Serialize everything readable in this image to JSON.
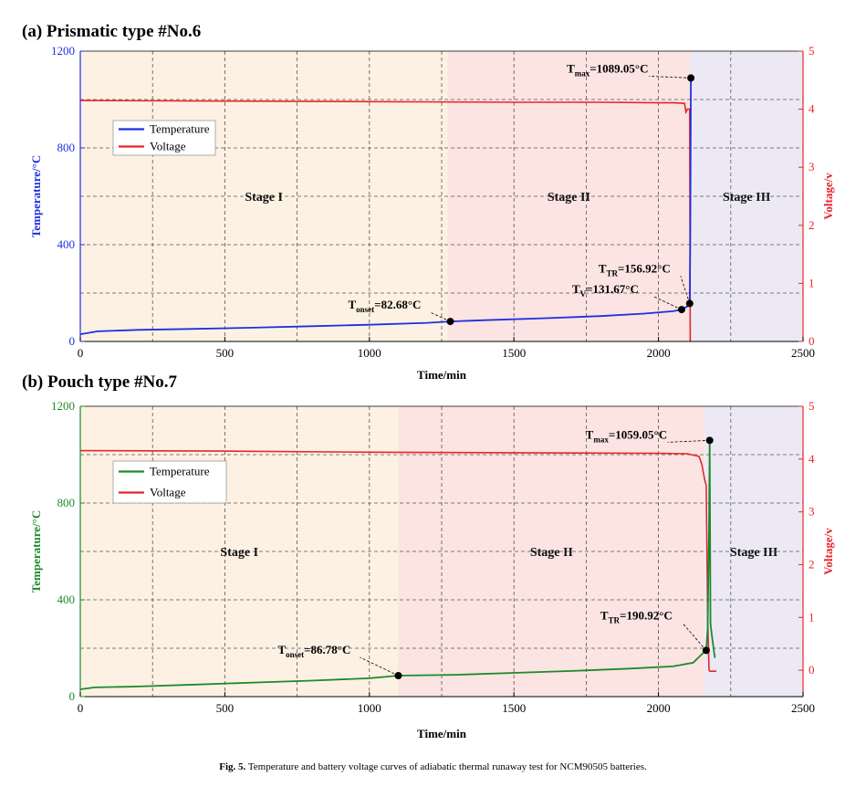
{
  "caption": {
    "label": "Fig. 5.",
    "text": "Temperature and battery voltage curves of adiabatic thermal runaway test for NCM90505 batteries."
  },
  "chart_data": [
    {
      "type": "line",
      "title": "(a) Prismatic type #No.6",
      "xlabel": "Time/min",
      "ylabel": "Temperature/°C",
      "y2label": "Voltage/v",
      "xlim": [
        0,
        2500
      ],
      "ylim": [
        0,
        1200
      ],
      "y2lim": [
        0,
        5
      ],
      "xticks": [
        "0",
        "500",
        "1000",
        "1500",
        "2000",
        "2500"
      ],
      "yticks": [
        "0",
        "400",
        "800",
        "1200"
      ],
      "y2ticks": [
        "0",
        "1",
        "2",
        "3",
        "4",
        "5"
      ],
      "grid": true,
      "legend_position": "upper-left",
      "temp_color": "#1f2fe0",
      "axis_color_left": "#1f2fe0",
      "axis_color_right": "#e8252a",
      "voltage_color": "#e8252a",
      "stages": [
        {
          "name": "Stage I",
          "x0": 0,
          "x1": 1270,
          "color": "#fdf1e3"
        },
        {
          "name": "Stage II",
          "x0": 1270,
          "x1": 2110,
          "color": "#fbe4e2"
        },
        {
          "name": "Stage III",
          "x0": 2110,
          "x1": 2500,
          "color": "#ece9f5"
        }
      ],
      "series": [
        {
          "name": "Temperature",
          "axis": "left",
          "x": [
            0,
            60,
            200,
            400,
            600,
            800,
            1000,
            1200,
            1280,
            1400,
            1600,
            1800,
            1950,
            2050,
            2080,
            2100,
            2108,
            2110,
            2112,
            2113
          ],
          "y": [
            30,
            42,
            48,
            52,
            57,
            63,
            69,
            77,
            82.68,
            88,
            96,
            105,
            115,
            125,
            131.67,
            145,
            156.92,
            400,
            1089.05,
            1080
          ]
        },
        {
          "name": "Voltage",
          "axis": "right",
          "x": [
            0,
            500,
            1000,
            1500,
            1800,
            2000,
            2050,
            2090,
            2095,
            2100,
            2108,
            2110
          ],
          "y": [
            4.15,
            4.14,
            4.13,
            4.12,
            4.12,
            4.11,
            4.11,
            4.1,
            3.95,
            4.0,
            4.0,
            0
          ]
        }
      ],
      "annotations": [
        {
          "main": "T",
          "sub": "onset",
          "rest": "=82.68°C",
          "x": 1280,
          "y": 82.68
        },
        {
          "main": "T",
          "sub": "V",
          "rest": "=131.67°C",
          "x": 2080,
          "y": 131.67
        },
        {
          "main": "T",
          "sub": "TR",
          "rest": "=156.92°C",
          "x": 2108,
          "y": 156.92
        },
        {
          "main": "T",
          "sub": "max",
          "rest": "=1089.05°C",
          "x": 2112,
          "y": 1089.05
        }
      ]
    },
    {
      "type": "line",
      "title": "(b) Pouch type #No.7",
      "xlabel": "Time/min",
      "ylabel": "Temperature/°C",
      "y2label": "Voltage/v",
      "xlim": [
        0,
        2500
      ],
      "ylim": [
        0,
        1200
      ],
      "y2lim": [
        -0.5,
        5
      ],
      "xticks": [
        "0",
        "500",
        "1000",
        "1500",
        "2000",
        "2500"
      ],
      "yticks": [
        "0",
        "400",
        "800",
        "1200"
      ],
      "y2ticks": [
        "0",
        "1",
        "2",
        "3",
        "4",
        "5"
      ],
      "grid": true,
      "legend_position": "upper-left",
      "temp_color": "#1d8a2a",
      "axis_color_left": "#1d8a2a",
      "axis_color_right": "#e8252a",
      "voltage_color": "#e8252a",
      "stages": [
        {
          "name": "Stage I",
          "x0": 0,
          "x1": 1100,
          "color": "#fdf1e3"
        },
        {
          "name": "Stage II",
          "x0": 1100,
          "x1": 2160,
          "color": "#fbe4e2"
        },
        {
          "name": "Stage III",
          "x0": 2160,
          "x1": 2500,
          "color": "#ece9f5"
        }
      ],
      "series": [
        {
          "name": "Temperature",
          "axis": "left",
          "x": [
            0,
            50,
            200,
            400,
            600,
            800,
            1000,
            1100,
            1300,
            1500,
            1700,
            1900,
            2050,
            2120,
            2150,
            2165,
            2170,
            2175,
            2177,
            2180,
            2185,
            2195
          ],
          "y": [
            30,
            38,
            42,
            50,
            58,
            66,
            76,
            86.78,
            90,
            98,
            106,
            116,
            125,
            140,
            175,
            190.92,
            280,
            700,
            1059.05,
            300,
            250,
            160
          ]
        },
        {
          "name": "Voltage",
          "axis": "right",
          "x": [
            0,
            500,
            1000,
            1500,
            2000,
            2100,
            2140,
            2150,
            2160,
            2165,
            2170,
            2175,
            2178,
            2200
          ],
          "y": [
            4.16,
            4.15,
            4.13,
            4.12,
            4.11,
            4.1,
            4.05,
            3.9,
            3.6,
            3.5,
            1.0,
            0.0,
            -0.02,
            -0.02
          ]
        }
      ],
      "annotations": [
        {
          "main": "T",
          "sub": "onset",
          "rest": "=86.78°C",
          "x": 1100,
          "y": 86.78
        },
        {
          "main": "T",
          "sub": "TR",
          "rest": "=190.92°C",
          "x": 2165,
          "y": 190.92
        },
        {
          "main": "T",
          "sub": "max",
          "rest": "=1059.05°C",
          "x": 2177,
          "y": 1059.05
        }
      ]
    }
  ]
}
